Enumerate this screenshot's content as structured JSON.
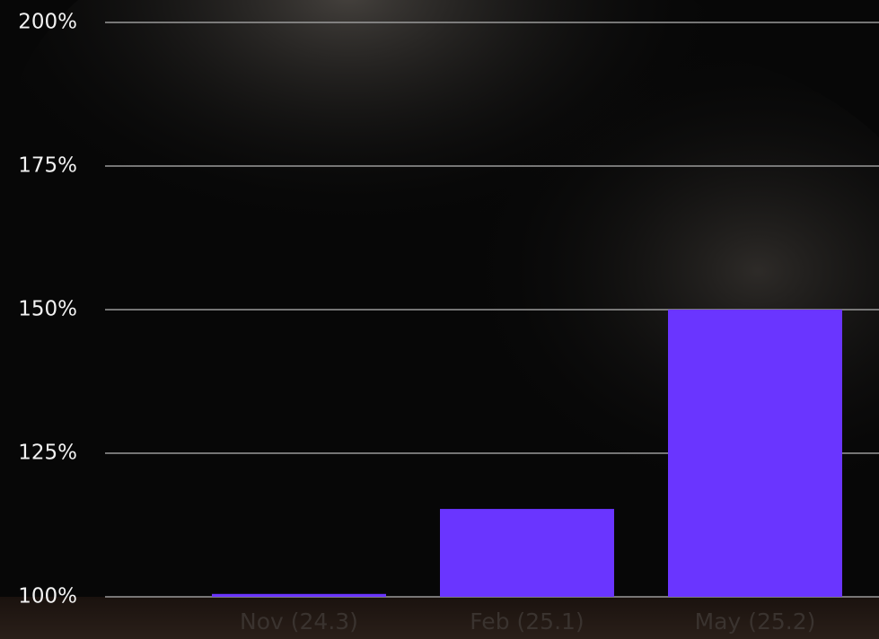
{
  "chart_data": {
    "type": "bar",
    "categories": [
      "Nov (24.3)",
      "Feb (25.1)",
      "May (25.2)"
    ],
    "values": [
      100.5,
      115.3,
      150
    ],
    "color": "#6a35ff",
    "ylim": [
      100,
      200
    ],
    "yticks": [
      {
        "value": 100,
        "label": "100%"
      },
      {
        "value": 125,
        "label": "125%"
      },
      {
        "value": 150,
        "label": "150%"
      },
      {
        "value": 175,
        "label": "175%"
      },
      {
        "value": 200,
        "label": "200%"
      }
    ],
    "grid": true
  }
}
